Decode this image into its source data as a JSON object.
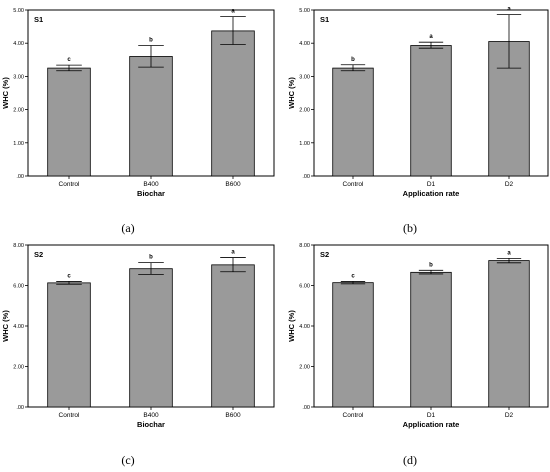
{
  "chart_data": [
    {
      "type": "bar",
      "panel_tag": "S1",
      "categories": [
        "Control",
        "B400",
        "B600"
      ],
      "values": [
        3.25,
        3.6,
        4.37
      ],
      "error_low": [
        3.17,
        3.28,
        3.96
      ],
      "error_high": [
        3.34,
        3.93,
        4.8
      ],
      "letters": [
        "c",
        "b",
        "a"
      ],
      "xlabel": "Biochar",
      "ylabel": "WHC (%)",
      "ylim": [
        0,
        5
      ],
      "yticks": [
        0,
        1,
        2,
        3,
        4,
        5
      ],
      "yticklabels": [
        ".00",
        "1.00",
        "2.00",
        "3.00",
        "4.00",
        "5.00"
      ],
      "caption": "(a)",
      "bar_color": "#9a9a9a",
      "grid": false
    },
    {
      "type": "bar",
      "panel_tag": "S1",
      "categories": [
        "Control",
        "D1",
        "D2"
      ],
      "values": [
        3.25,
        3.93,
        4.05
      ],
      "error_low": [
        3.17,
        3.85,
        3.25
      ],
      "error_high": [
        3.35,
        4.03,
        4.86
      ],
      "letters": [
        "b",
        "a",
        "a"
      ],
      "xlabel": "Application rate",
      "ylabel": "WHC (%)",
      "ylim": [
        0,
        5
      ],
      "yticks": [
        0,
        1,
        2,
        3,
        4,
        5
      ],
      "yticklabels": [
        ".00",
        "1.00",
        "2.00",
        "3.00",
        "4.00",
        "5.00"
      ],
      "caption": "(b)",
      "bar_color": "#9a9a9a",
      "grid": false
    },
    {
      "type": "bar",
      "panel_tag": "S2",
      "categories": [
        "Control",
        "B400",
        "B600"
      ],
      "values": [
        6.13,
        6.83,
        7.02
      ],
      "error_low": [
        6.06,
        6.55,
        6.68
      ],
      "error_high": [
        6.2,
        7.13,
        7.38
      ],
      "letters": [
        "c",
        "b",
        "a"
      ],
      "xlabel": "Biochar",
      "ylabel": "WHC (%)",
      "ylim": [
        0,
        8
      ],
      "yticks": [
        0,
        2,
        4,
        6,
        8
      ],
      "yticklabels": [
        ".00",
        "2.00",
        "4.00",
        "6.00",
        "8.00"
      ],
      "caption": "(c)",
      "bar_color": "#9a9a9a",
      "grid": false
    },
    {
      "type": "bar",
      "panel_tag": "S2",
      "categories": [
        "Control",
        "D1",
        "D2"
      ],
      "values": [
        6.14,
        6.65,
        7.23
      ],
      "error_low": [
        6.08,
        6.57,
        7.12
      ],
      "error_high": [
        6.2,
        6.75,
        7.34
      ],
      "letters": [
        "c",
        "b",
        "a"
      ],
      "xlabel": "Application rate",
      "ylabel": "WHC (%)",
      "ylim": [
        0,
        8
      ],
      "yticks": [
        0,
        2,
        4,
        6,
        8
      ],
      "yticklabels": [
        ".00",
        "2.00",
        "4.00",
        "6.00",
        "8.00"
      ],
      "caption": "(d)",
      "bar_color": "#9a9a9a",
      "grid": false
    }
  ]
}
